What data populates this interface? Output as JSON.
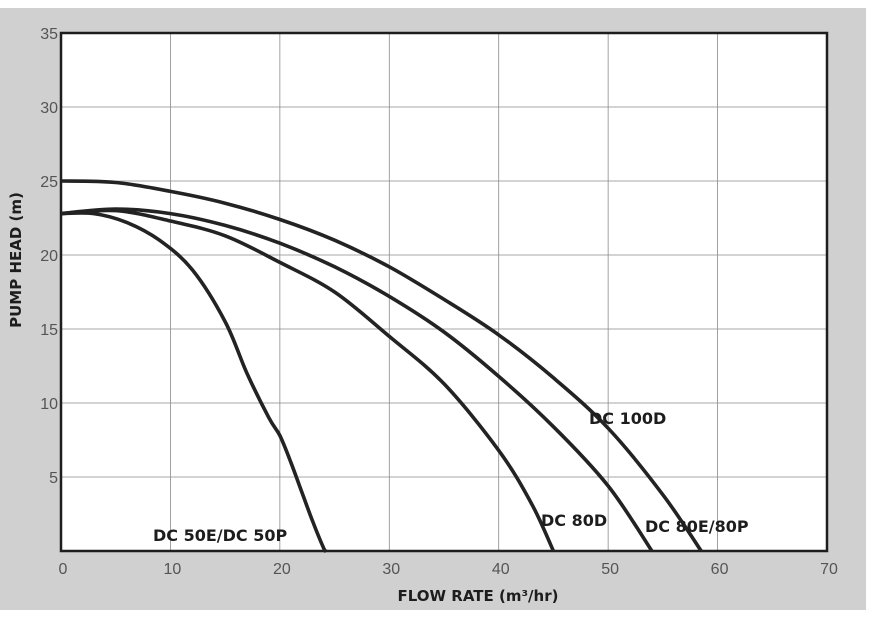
{
  "chart_data": {
    "type": "line",
    "xlabel": "FLOW RATE (m³/hr)",
    "ylabel": "PUMP HEAD (m)",
    "xlim": [
      0,
      70
    ],
    "ylim": [
      0,
      35
    ],
    "xticks": [
      0,
      10,
      20,
      30,
      40,
      50,
      60,
      70
    ],
    "yticks": [
      5,
      10,
      15,
      20,
      25,
      30,
      35
    ],
    "grid": true,
    "legend": "labels placed next to curves",
    "line_color": "#232323",
    "background": "#ffffff",
    "frame_color": "#d0d0d1",
    "series": [
      {
        "name": "DC 50E/DC 50P",
        "x": [
          0,
          3,
          6,
          9,
          12,
          15,
          17,
          19,
          20,
          21,
          22,
          23,
          24,
          24.2
        ],
        "y": [
          22.8,
          22.8,
          22.2,
          21.0,
          19.0,
          15.5,
          12.0,
          9.0,
          7.8,
          6.0,
          4.0,
          2.0,
          0.2,
          0
        ]
      },
      {
        "name": "DC 80D",
        "x": [
          0,
          5,
          10,
          15,
          20,
          25,
          30,
          35,
          40,
          43,
          45
        ],
        "y": [
          22.8,
          23.0,
          22.3,
          21.3,
          19.5,
          17.5,
          14.5,
          11.3,
          6.8,
          3.2,
          0
        ]
      },
      {
        "name": "DC 80E/80P",
        "x": [
          0,
          5,
          10,
          15,
          20,
          25,
          30,
          35,
          40,
          45,
          50,
          54
        ],
        "y": [
          22.8,
          23.1,
          22.8,
          22.0,
          20.8,
          19.2,
          17.2,
          14.8,
          11.8,
          8.4,
          4.4,
          0
        ]
      },
      {
        "name": "DC 100D",
        "x": [
          0,
          5,
          10,
          15,
          20,
          25,
          30,
          35,
          40,
          45,
          50,
          55,
          58.5
        ],
        "y": [
          25.0,
          24.9,
          24.3,
          23.5,
          22.4,
          21.0,
          19.2,
          17.0,
          14.6,
          11.7,
          8.3,
          3.8,
          0
        ]
      }
    ]
  }
}
